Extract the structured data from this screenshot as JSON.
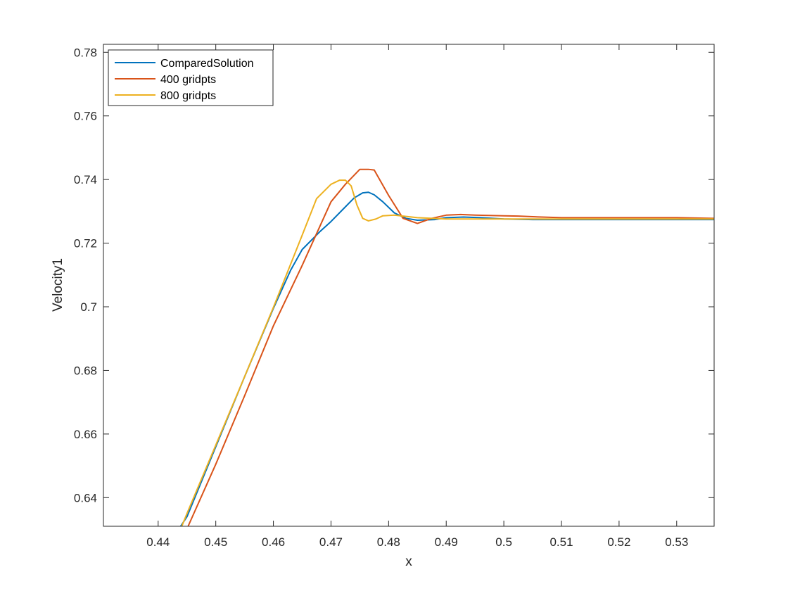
{
  "chart_data": {
    "type": "line",
    "title": "",
    "xlabel": "x",
    "ylabel": "Velocity1",
    "xlim": [
      0.4305,
      0.5365
    ],
    "ylim": [
      0.631,
      0.7825
    ],
    "xticks": [
      0.44,
      0.45,
      0.46,
      0.47,
      0.48,
      0.49,
      0.5,
      0.51,
      0.52,
      0.53
    ],
    "xtick_labels": [
      "0.44",
      "0.45",
      "0.46",
      "0.47",
      "0.48",
      "0.49",
      "0.5",
      "0.51",
      "0.52",
      "0.53"
    ],
    "yticks": [
      0.64,
      0.66,
      0.68,
      0.7,
      0.72,
      0.74,
      0.76,
      0.78
    ],
    "ytick_labels": [
      "0.64",
      "0.66",
      "0.68",
      "0.7",
      "0.72",
      "0.74",
      "0.76",
      "0.78"
    ],
    "grid": false,
    "legend_position": "top-left",
    "series": [
      {
        "name": "ComparedSolution",
        "color": "#0072BD",
        "x": [
          0.4439,
          0.445,
          0.45,
          0.455,
          0.46,
          0.463,
          0.465,
          0.468,
          0.47,
          0.472,
          0.474,
          0.4755,
          0.4765,
          0.4775,
          0.479,
          0.481,
          0.483,
          0.485,
          0.488,
          0.49,
          0.493,
          0.496,
          0.5,
          0.505,
          0.51,
          0.52,
          0.5365
        ],
        "y": [
          0.631,
          0.634,
          0.656,
          0.678,
          0.6995,
          0.7115,
          0.718,
          0.7235,
          0.7268,
          0.7305,
          0.7342,
          0.7358,
          0.736,
          0.7352,
          0.733,
          0.7295,
          0.7278,
          0.7272,
          0.7274,
          0.728,
          0.7282,
          0.728,
          0.7276,
          0.7274,
          0.7274,
          0.7274,
          0.7274
        ]
      },
      {
        "name": "400 gridpts",
        "color": "#D95319",
        "x": [
          0.4452,
          0.45,
          0.455,
          0.46,
          0.465,
          0.47,
          0.4725,
          0.475,
          0.4765,
          0.4775,
          0.48,
          0.4825,
          0.485,
          0.4875,
          0.49,
          0.4925,
          0.495,
          0.5,
          0.5025,
          0.505,
          0.51,
          0.515,
          0.52,
          0.53,
          0.5365
        ],
        "y": [
          0.631,
          0.6505,
          0.672,
          0.694,
          0.713,
          0.733,
          0.7385,
          0.7432,
          0.7432,
          0.743,
          0.735,
          0.7278,
          0.7262,
          0.7278,
          0.7288,
          0.729,
          0.7288,
          0.7286,
          0.7285,
          0.7283,
          0.728,
          0.728,
          0.728,
          0.728,
          0.7278
        ]
      },
      {
        "name": "800 gridpts",
        "color": "#EDB120",
        "x": [
          0.4441,
          0.445,
          0.45,
          0.455,
          0.46,
          0.465,
          0.4675,
          0.47,
          0.4715,
          0.4725,
          0.4735,
          0.4745,
          0.4755,
          0.4765,
          0.4778,
          0.479,
          0.481,
          0.4825,
          0.485,
          0.49,
          0.495,
          0.5,
          0.51,
          0.52,
          0.5365
        ],
        "y": [
          0.631,
          0.635,
          0.6565,
          0.678,
          0.6998,
          0.7225,
          0.734,
          0.7385,
          0.7398,
          0.7398,
          0.738,
          0.732,
          0.7278,
          0.727,
          0.7276,
          0.7286,
          0.7288,
          0.7285,
          0.728,
          0.7276,
          0.7276,
          0.7276,
          0.7276,
          0.7276,
          0.7276
        ]
      }
    ]
  }
}
